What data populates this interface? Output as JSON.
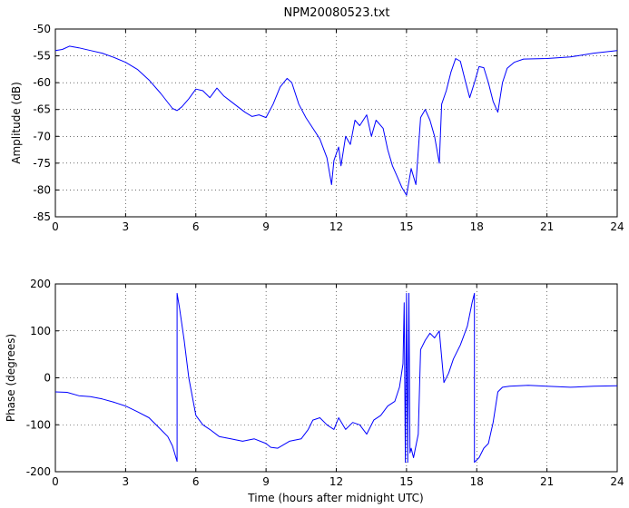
{
  "window": {
    "title": "NPM20080523.txt"
  },
  "chart_data": [
    {
      "type": "line",
      "title": "NPM20080523.txt",
      "xlabel": "",
      "ylabel": "Amplitude (dB)",
      "xlim": [
        0,
        24
      ],
      "ylim": [
        -85,
        -50
      ],
      "xticks": [
        0,
        3,
        6,
        9,
        12,
        15,
        18,
        21,
        24
      ],
      "yticks": [
        -85,
        -80,
        -75,
        -70,
        -65,
        -60,
        -55,
        -50
      ],
      "grid": true,
      "color": "#0000ff",
      "series": [
        {
          "x": [
            0,
            0.3,
            0.6,
            1.0,
            1.5,
            2.0,
            2.5,
            3.0,
            3.5,
            4.0,
            4.5,
            5.0,
            5.2,
            5.4,
            5.7,
            6.0,
            6.3,
            6.6,
            6.9,
            7.2,
            7.5,
            7.8,
            8.1,
            8.4,
            8.7,
            9.0,
            9.3,
            9.6,
            9.9,
            10.1,
            10.4,
            10.7,
            11.0,
            11.3,
            11.6,
            11.8,
            11.9,
            12.1,
            12.2,
            12.4,
            12.6,
            12.8,
            13.0,
            13.3,
            13.5,
            13.7,
            14.0,
            14.2,
            14.4,
            14.6,
            14.8,
            15.0,
            15.2,
            15.4,
            15.6,
            15.8,
            16.0,
            16.2,
            16.4,
            16.5,
            16.7,
            16.9,
            17.1,
            17.3,
            17.5,
            17.7,
            17.9,
            18.1,
            18.3,
            18.5,
            18.7,
            18.9,
            19.1,
            19.3,
            19.6,
            20.0,
            21.0,
            22.0,
            23.0,
            24.0
          ],
          "y": [
            -54.0,
            -53.8,
            -53.2,
            -53.5,
            -54.0,
            -54.5,
            -55.3,
            -56.2,
            -57.5,
            -59.5,
            -62.0,
            -64.8,
            -65.2,
            -64.5,
            -63.0,
            -61.2,
            -61.5,
            -62.8,
            -61.0,
            -62.5,
            -63.5,
            -64.5,
            -65.5,
            -66.3,
            -66.0,
            -66.5,
            -64.0,
            -60.8,
            -59.2,
            -60.0,
            -64.0,
            -66.5,
            -68.5,
            -70.5,
            -74.0,
            -79.0,
            -74.5,
            -72.0,
            -75.5,
            -70.0,
            -71.5,
            -67.0,
            -68.0,
            -66.0,
            -70.0,
            -67.0,
            -68.5,
            -72.5,
            -75.5,
            -77.5,
            -79.5,
            -81.0,
            -76.0,
            -79.0,
            -66.5,
            -65.0,
            -67.0,
            -70.0,
            -75.0,
            -64.0,
            -61.5,
            -58.0,
            -55.5,
            -56.0,
            -59.5,
            -62.8,
            -60.0,
            -57.0,
            -57.2,
            -60.0,
            -63.5,
            -65.5,
            -60.0,
            -57.3,
            -56.2,
            -55.6,
            -55.5,
            -55.2,
            -54.5,
            -54.0
          ]
        }
      ]
    },
    {
      "type": "line",
      "title": "",
      "xlabel": "Time (hours after midnight UTC)",
      "ylabel": "Phase (degrees)",
      "xlim": [
        0,
        24
      ],
      "ylim": [
        -200,
        200
      ],
      "xticks": [
        0,
        3,
        6,
        9,
        12,
        15,
        18,
        21,
        24
      ],
      "yticks": [
        -200,
        -100,
        0,
        100,
        200
      ],
      "grid": true,
      "color": "#0000ff",
      "series": [
        {
          "x": [
            0,
            0.5,
            1.0,
            1.5,
            2.0,
            2.5,
            3.0,
            3.5,
            4.0,
            4.5,
            4.8,
            5.0,
            5.2,
            5.2,
            5.3,
            5.5,
            5.7,
            6.0,
            6.3,
            6.6,
            7.0,
            7.5,
            8.0,
            8.5,
            9.0,
            9.2,
            9.5,
            10.0,
            10.5,
            10.8,
            11.0,
            11.3,
            11.6,
            11.9,
            12.1,
            12.4,
            12.7,
            13.0,
            13.3,
            13.6,
            13.9,
            14.2,
            14.5,
            14.7,
            14.85,
            14.9,
            14.95,
            15.0,
            15.05,
            15.1,
            15.15,
            15.2,
            15.3,
            15.5,
            15.6,
            15.8,
            16.0,
            16.2,
            16.4,
            16.6,
            16.8,
            17.0,
            17.3,
            17.6,
            17.8,
            17.9,
            17.9,
            18.1,
            18.3,
            18.5,
            18.7,
            18.9,
            19.1,
            19.4,
            19.8,
            20.2,
            21.0,
            22.0,
            23.0,
            24.0
          ],
          "y": [
            -30,
            -31,
            -38,
            -40,
            -45,
            -52,
            -60,
            -72,
            -85,
            -110,
            -125,
            -145,
            -178,
            180,
            150,
            80,
            0,
            -80,
            -100,
            -110,
            -125,
            -130,
            -135,
            -130,
            -140,
            -148,
            -150,
            -135,
            -130,
            -110,
            -90,
            -85,
            -100,
            -110,
            -85,
            -110,
            -95,
            -100,
            -120,
            -90,
            -80,
            -60,
            -50,
            -20,
            30,
            160,
            -180,
            180,
            -180,
            180,
            -160,
            -150,
            -170,
            -120,
            60,
            80,
            95,
            85,
            100,
            -10,
            10,
            40,
            70,
            110,
            160,
            180,
            -180,
            -170,
            -150,
            -140,
            -95,
            -30,
            -20,
            -18,
            -17,
            -16,
            -18,
            -20,
            -18,
            -17
          ]
        }
      ]
    }
  ]
}
